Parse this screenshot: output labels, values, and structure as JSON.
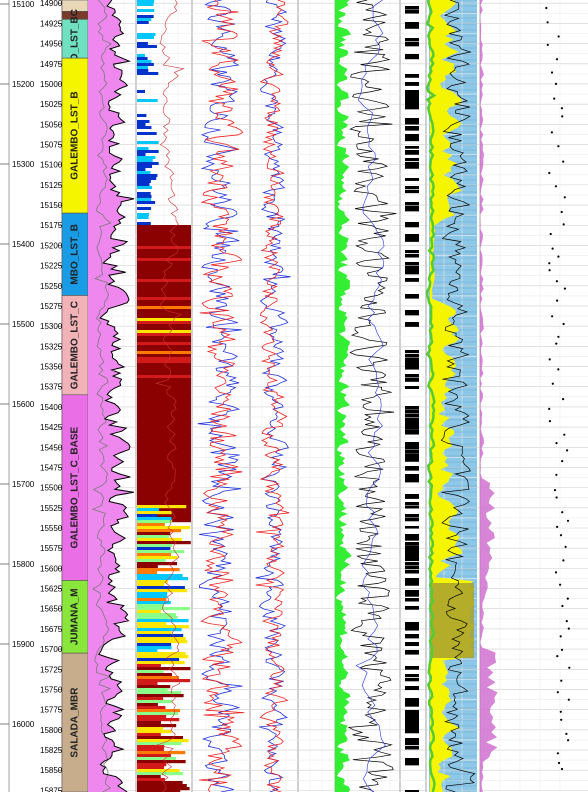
{
  "chart_data": {
    "type": "well-log",
    "depth_axis_tvd": {
      "label_values": [
        15100,
        15200,
        15300,
        15400,
        15500,
        15600,
        15700,
        15800,
        15900,
        16000
      ],
      "range": [
        15095,
        16085
      ]
    },
    "depth_axis_md": {
      "label_values": [
        14900,
        14925,
        14950,
        14975,
        15000,
        15025,
        15050,
        15075,
        15100,
        15125,
        15150,
        15175,
        15200,
        15225,
        15250,
        15275,
        15300,
        15325,
        15350,
        15375,
        15400,
        15425,
        15450,
        15475,
        15500,
        15525,
        15550,
        15575,
        15600,
        15625,
        15650,
        15675,
        15700,
        15725,
        15750,
        15775,
        15800,
        15825,
        15850,
        15875
      ],
      "range": [
        14896,
        15877
      ]
    },
    "zones": [
      {
        "name": "",
        "top": 14896,
        "base": 14910,
        "color": "#e8d8b8"
      },
      {
        "name": "",
        "top": 14910,
        "base": 14920,
        "color": "#7a3b2a"
      },
      {
        "name": "BO_LST_BC",
        "top": 14920,
        "base": 14968,
        "color": "#6fe0c0"
      },
      {
        "name": "GALEMBO_LST_B",
        "top": 14968,
        "base": 15160,
        "color": "#f5f500"
      },
      {
        "name": "MBO_LST_B",
        "top": 15160,
        "base": 15262,
        "color": "#1a9be6"
      },
      {
        "name": "GALEMBO_LST_C",
        "top": 15262,
        "base": 15385,
        "color": "#f2b3b8"
      },
      {
        "name": "GALEMBO_LST_C_BASE",
        "top": 15385,
        "base": 15615,
        "color": "#ea6fe6"
      },
      {
        "name": "JUMANA_M",
        "top": 15615,
        "base": 15705,
        "color": "#8ae63a"
      },
      {
        "name": "SALADA_MBR",
        "top": 15705,
        "base": 15877,
        "color": "#c8ad8c"
      }
    ],
    "tracks": [
      {
        "name": "gamma-ray",
        "fill": "#ee88ee",
        "curve_color": "#000000"
      },
      {
        "name": "facies-image",
        "palette": [
          "#8b0000",
          "#d21a1a",
          "#ff7a00",
          "#ffe600",
          "#8aff8a",
          "#00c8ff",
          "#0033cc"
        ]
      },
      {
        "name": "resistivity-pair",
        "colors": [
          "#2233dd",
          "#ee2222"
        ]
      },
      {
        "name": "sonic",
        "colors": [
          "#2233dd",
          "#ee2222"
        ]
      },
      {
        "name": "porosity",
        "fill": "#33ee33",
        "curve_color": "#000000"
      },
      {
        "name": "flag",
        "color": "#000000"
      },
      {
        "name": "lithology",
        "colors": [
          "#8ec8e8",
          "#f5f500",
          "#a8a030",
          "#55cc33",
          "#d070d0"
        ]
      },
      {
        "name": "point-samples",
        "color": "#000000"
      }
    ]
  }
}
